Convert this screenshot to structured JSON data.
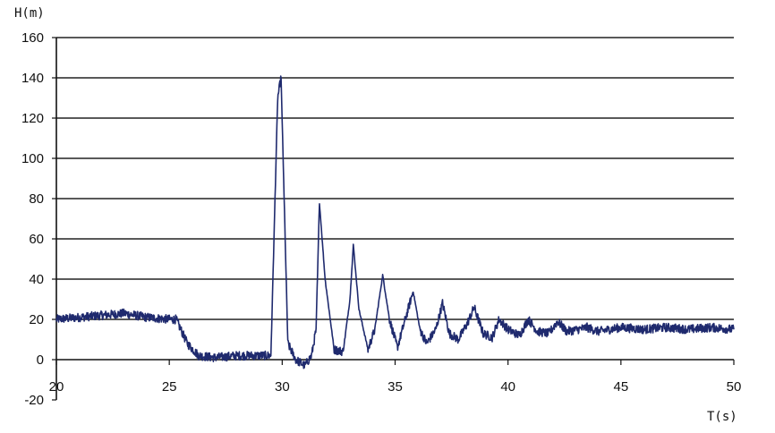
{
  "chart_data": {
    "type": "line",
    "title": "",
    "xlabel": "T(s)",
    "ylabel": "H(m)",
    "xlim": [
      20,
      50
    ],
    "ylim": [
      -20,
      160
    ],
    "x_ticks": [
      20,
      25,
      30,
      35,
      40,
      45,
      50
    ],
    "y_ticks": [
      -20,
      0,
      20,
      40,
      60,
      80,
      100,
      120,
      140,
      160
    ],
    "grid": "horizontal",
    "line_color": "#1f2a6e",
    "series": [
      {
        "x": [
          20,
          21,
          22,
          23,
          24,
          25,
          25.3,
          25.8,
          26.3,
          27,
          28,
          29,
          29.5,
          29.8,
          29.95,
          30.25,
          30.6,
          31,
          31.3,
          31.5,
          31.65,
          31.9,
          32.3,
          32.7,
          33.0,
          33.15,
          33.4,
          33.8,
          34.1,
          34.45,
          34.75,
          35.1,
          35.45,
          35.8,
          36.1,
          36.4,
          36.8,
          37.1,
          37.4,
          37.8,
          38.2,
          38.5,
          38.9,
          39.3,
          39.6,
          40.0,
          40.5,
          40.9,
          41.3,
          41.8,
          42.2,
          42.6,
          43.1,
          43.5,
          44.0,
          44.5,
          45.0,
          46.0,
          47.0,
          48.0,
          49.0,
          50.0
        ],
        "y": [
          20,
          21,
          22,
          23,
          21,
          20,
          20,
          8,
          2,
          1,
          2,
          2,
          2,
          130,
          140,
          8,
          0,
          -3,
          2,
          15,
          78,
          40,
          5,
          4,
          30,
          57,
          25,
          5,
          15,
          42,
          20,
          6,
          20,
          34,
          15,
          8,
          15,
          28,
          13,
          10,
          18,
          26,
          13,
          11,
          20,
          15,
          12,
          20,
          14,
          13,
          19,
          14,
          15,
          16,
          14,
          15,
          16,
          15,
          16,
          15,
          16,
          15
        ]
      }
    ]
  }
}
